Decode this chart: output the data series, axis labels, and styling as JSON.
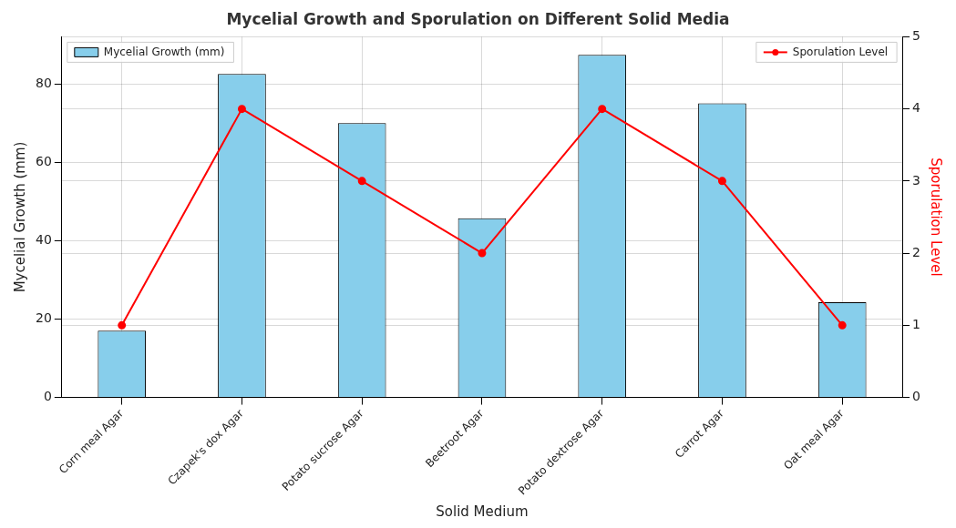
{
  "chart_data": {
    "type": "bar",
    "title": "Mycelial Growth and Sporulation on Different Solid Media",
    "xlabel": "Solid Medium",
    "ylabel": "Mycelial Growth (mm)",
    "y2label": "Sporulation Level",
    "categories": [
      "Corn meal Agar",
      "Czapek's dox Agar",
      "Potato sucrose Agar",
      "Beetroot Agar",
      "Potato dextrose Agar",
      "Carrot Agar",
      "Oat meal Agar"
    ],
    "series": [
      {
        "name": "Mycelial Growth (mm)",
        "color": "#87ceeb",
        "values": [
          17,
          82.5,
          70,
          45.7,
          87.4,
          75,
          24.3
        ]
      },
      {
        "name": "Sporulation Level",
        "type": "line",
        "axis": "y2",
        "color": "#ff0000",
        "marker": "circle",
        "values": [
          1,
          4,
          3,
          2,
          4,
          3,
          1
        ]
      }
    ],
    "ylim": [
      0,
      92
    ],
    "yticks": [
      0,
      20,
      40,
      60,
      80
    ],
    "y2lim": [
      0,
      5
    ],
    "y2ticks": [
      0,
      1,
      2,
      3,
      4,
      5
    ],
    "grid": true,
    "legend": "top"
  }
}
